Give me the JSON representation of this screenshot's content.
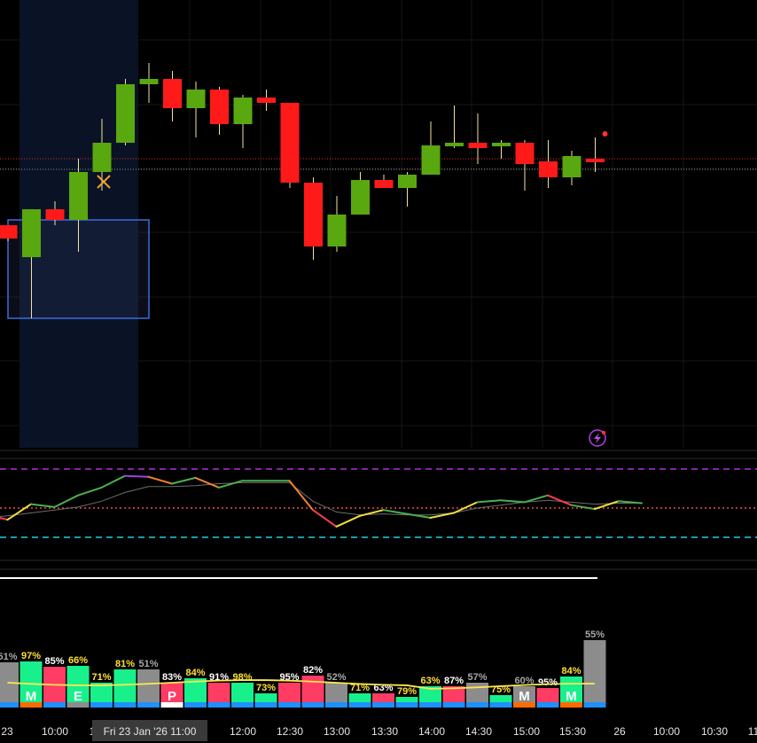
{
  "chart_data": {
    "type": "candlestick",
    "price_panel": {
      "candles": [
        {
          "o": 3.2,
          "h": 3.2,
          "l": 2.6,
          "c": 2.7,
          "color": "red"
        },
        {
          "o": 2.0,
          "h": 3.8,
          "l": -0.3,
          "c": 3.8,
          "color": "green"
        },
        {
          "o": 3.8,
          "h": 4.1,
          "l": 3.2,
          "c": 3.4,
          "color": "red"
        },
        {
          "o": 3.4,
          "h": 5.7,
          "l": 2.2,
          "c": 5.2,
          "color": "green"
        },
        {
          "o": 5.2,
          "h": 7.2,
          "l": 4.5,
          "c": 6.3,
          "color": "green"
        },
        {
          "o": 6.3,
          "h": 8.7,
          "l": 6.2,
          "c": 8.5,
          "color": "green"
        },
        {
          "o": 8.5,
          "h": 9.3,
          "l": 7.8,
          "c": 8.7,
          "color": "green"
        },
        {
          "o": 8.7,
          "h": 9.0,
          "l": 7.1,
          "c": 7.6,
          "color": "red"
        },
        {
          "o": 7.6,
          "h": 8.6,
          "l": 6.5,
          "c": 8.3,
          "color": "green"
        },
        {
          "o": 8.3,
          "h": 8.4,
          "l": 6.6,
          "c": 7.0,
          "color": "red"
        },
        {
          "o": 7.0,
          "h": 8.1,
          "l": 6.1,
          "c": 8.0,
          "color": "green"
        },
        {
          "o": 8.0,
          "h": 8.3,
          "l": 7.5,
          "c": 7.8,
          "color": "red"
        },
        {
          "o": 7.8,
          "h": 7.8,
          "l": 4.6,
          "c": 4.8,
          "color": "red"
        },
        {
          "o": 4.8,
          "h": 5.0,
          "l": 1.9,
          "c": 2.4,
          "color": "red"
        },
        {
          "o": 2.4,
          "h": 4.3,
          "l": 2.2,
          "c": 3.6,
          "color": "green"
        },
        {
          "o": 3.6,
          "h": 5.2,
          "l": 3.6,
          "c": 4.9,
          "color": "green"
        },
        {
          "o": 4.9,
          "h": 5.1,
          "l": 4.6,
          "c": 4.6,
          "color": "red"
        },
        {
          "o": 4.6,
          "h": 5.2,
          "l": 3.9,
          "c": 5.1,
          "color": "green"
        },
        {
          "o": 5.1,
          "h": 7.1,
          "l": 5.1,
          "c": 6.2,
          "color": "green"
        },
        {
          "o": 6.2,
          "h": 7.7,
          "l": 6.1,
          "c": 6.3,
          "color": "green"
        },
        {
          "o": 6.3,
          "h": 7.4,
          "l": 5.5,
          "c": 6.1,
          "color": "red"
        },
        {
          "o": 6.2,
          "h": 6.4,
          "l": 5.7,
          "c": 6.3,
          "color": "green"
        },
        {
          "o": 6.3,
          "h": 6.4,
          "l": 4.5,
          "c": 5.5,
          "color": "red"
        },
        {
          "o": 5.6,
          "h": 6.4,
          "l": 4.6,
          "c": 5.0,
          "color": "red"
        },
        {
          "o": 5.0,
          "h": 6.0,
          "l": 4.7,
          "c": 5.8,
          "color": "green"
        },
        {
          "o": 5.7,
          "h": 6.5,
          "l": 5.2,
          "c": 5.6,
          "color": "red"
        }
      ],
      "reference_lines": [
        {
          "value": 5.7,
          "color": "#d0342c",
          "style": "dotted"
        },
        {
          "value": 5.3,
          "color": "#9a9a9a",
          "style": "dotted"
        }
      ],
      "marker": {
        "type": "x",
        "color": "#f0a030",
        "candle_index": 4,
        "value": 5.0
      },
      "box": {
        "color": "#3d6be0"
      },
      "highlight_band_color": "#0a1226"
    },
    "oscillator_panel": {
      "values": [
        34,
        28,
        44,
        41,
        53,
        61,
        73,
        72,
        65,
        71,
        61,
        68,
        68,
        68,
        38,
        21,
        32,
        38,
        34,
        30,
        35,
        46,
        48,
        46,
        53,
        43,
        39,
        47,
        45
      ],
      "signal": [
        30,
        32,
        35,
        38,
        41,
        47,
        56,
        62,
        62,
        63,
        65,
        66,
        66,
        66,
        47,
        36,
        33,
        34,
        33,
        33,
        35,
        40,
        43,
        46,
        48,
        46,
        44,
        45,
        45
      ],
      "levels": [
        {
          "value": 80,
          "color": "#b030d8",
          "style": "dashed"
        },
        {
          "value": 40,
          "color": "#e8503c",
          "style": "dotted"
        },
        {
          "value": 10,
          "color": "#20d0e8",
          "style": "dashed"
        }
      ],
      "alert_icon": "lightning-alert-icon"
    },
    "volume_panel": {
      "bars": [
        {
          "pct": "51%",
          "value": 51,
          "color": "#8c8c8c",
          "label_color": "#a8a8a8",
          "foot": "#1e90ff"
        },
        {
          "pct": "97%",
          "value": 52,
          "color": "#18f08c",
          "label_color": "#ffe030",
          "foot": "#ff6a00",
          "badge": "M"
        },
        {
          "pct": "85%",
          "value": 46,
          "color": "#ff3c64",
          "label_color": "#ffffff",
          "foot": "#1e90ff"
        },
        {
          "pct": "66%",
          "value": 47,
          "color": "#18f08c",
          "label_color": "#ffe030",
          "foot": "#8c8c8c",
          "badge": "E"
        },
        {
          "pct": "71%",
          "value": 28,
          "color": "#18f08c",
          "label_color": "#ffe030",
          "foot": "#1e90ff"
        },
        {
          "pct": "81%",
          "value": 43,
          "color": "#18f08c",
          "label_color": "#ffe030",
          "foot": "#1e90ff"
        },
        {
          "pct": "51%",
          "value": 43,
          "color": "#8c8c8c",
          "label_color": "#a8a8a8",
          "foot": "#1e90ff"
        },
        {
          "pct": "83%",
          "value": 28,
          "color": "#ff3c64",
          "label_color": "#ffffff",
          "foot": "#ffffff",
          "badge": "P"
        },
        {
          "pct": "84%",
          "value": 33,
          "color": "#18f08c",
          "label_color": "#ffe030",
          "foot": "#1e90ff"
        },
        {
          "pct": "91%",
          "value": 28,
          "color": "#ff3c64",
          "label_color": "#ffffff",
          "foot": "#1e90ff"
        },
        {
          "pct": "98%",
          "value": 28,
          "color": "#18f08c",
          "label_color": "#ffe030",
          "foot": "#1e90ff"
        },
        {
          "pct": "73%",
          "value": 16,
          "color": "#18f08c",
          "label_color": "#ffe030",
          "foot": "#1e90ff"
        },
        {
          "pct": "95%",
          "value": 28,
          "color": "#ff3c64",
          "label_color": "#ffffff",
          "foot": "#1e90ff"
        },
        {
          "pct": "82%",
          "value": 36,
          "color": "#ff3c64",
          "label_color": "#ffffff",
          "foot": "#1e90ff"
        },
        {
          "pct": "52%",
          "value": 28,
          "color": "#8c8c8c",
          "label_color": "#a8a8a8",
          "foot": "#1e90ff"
        },
        {
          "pct": "71%",
          "value": 16,
          "color": "#18f08c",
          "label_color": "#ffe030",
          "foot": "#1e90ff"
        },
        {
          "pct": "63%",
          "value": 16,
          "color": "#ff3c64",
          "label_color": "#ffffff",
          "foot": "#1e90ff"
        },
        {
          "pct": "79%",
          "value": 12,
          "color": "#18f08c",
          "label_color": "#ffe030",
          "foot": "#1e90ff"
        },
        {
          "pct": "63%",
          "value": 24,
          "color": "#18f08c",
          "label_color": "#ffe030",
          "foot": "#1e90ff"
        },
        {
          "pct": "87%",
          "value": 24,
          "color": "#ff3c64",
          "label_color": "#ffffff",
          "foot": "#1e90ff"
        },
        {
          "pct": "57%",
          "value": 28,
          "color": "#8c8c8c",
          "label_color": "#a8a8a8",
          "foot": "#1e90ff"
        },
        {
          "pct": "75%",
          "value": 14,
          "color": "#18f08c",
          "label_color": "#ffe030",
          "foot": "#1e90ff"
        },
        {
          "pct": "60%",
          "value": 24,
          "color": "#8c8c8c",
          "label_color": "#a8a8a8",
          "foot": "#ff6a00",
          "badge": "M"
        },
        {
          "pct": "95%",
          "value": 22,
          "color": "#ff3c64",
          "label_color": "#ffffff",
          "foot": "#1e90ff"
        },
        {
          "pct": "84%",
          "value": 35,
          "color": "#18f08c",
          "label_color": "#ffe030",
          "foot": "#ff6a00",
          "badge": "M"
        },
        {
          "pct": "55%",
          "value": 76,
          "color": "#8c8c8c",
          "label_color": "#a8a8a8",
          "foot": "#1e90ff"
        }
      ],
      "average_line_color": "#ffe850"
    },
    "x_axis": {
      "ticks": [
        "23",
        "10:00",
        "1",
        "12:00",
        "12:30",
        "13:00",
        "13:30",
        "14:00",
        "14:30",
        "15:00",
        "15:30",
        "26",
        "10:00",
        "10:30",
        "11"
      ],
      "crosshair_label": "Fri 23 Jan '26    11:00"
    },
    "grid": true
  }
}
